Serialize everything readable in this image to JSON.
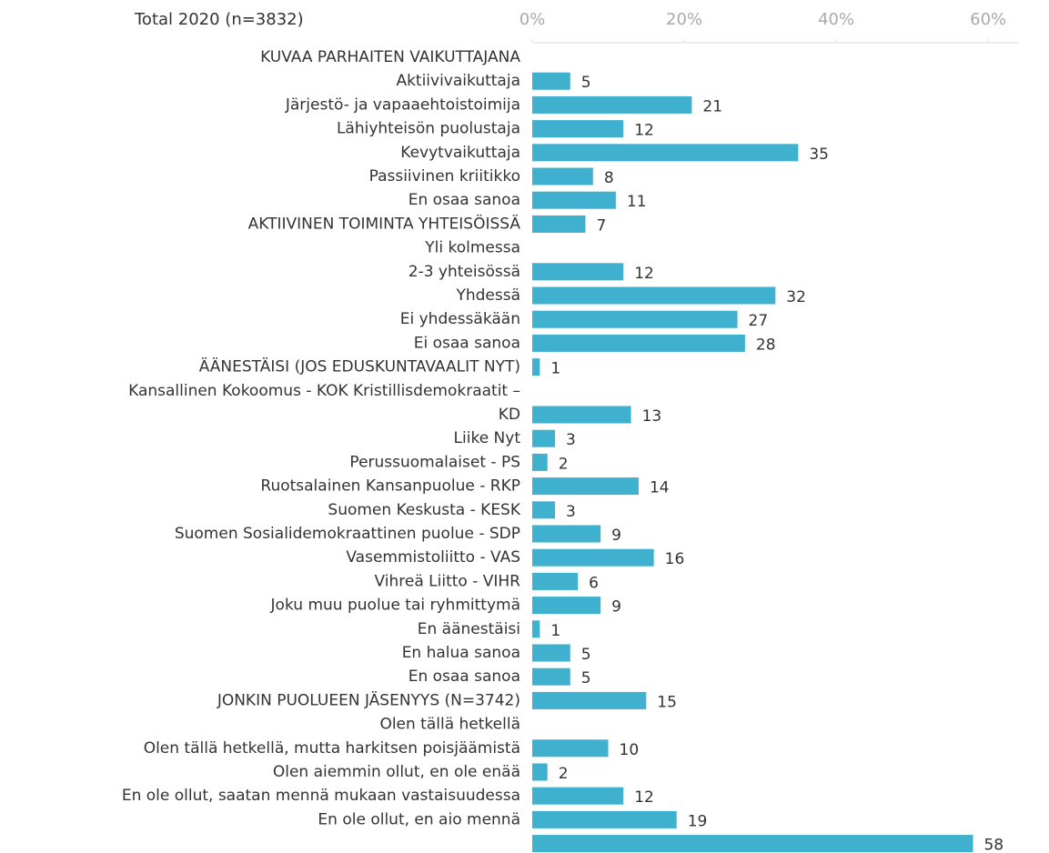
{
  "chart_data": {
    "type": "bar",
    "orientation": "horizontal",
    "title": "Total 2020 (n=3832)",
    "color": "#3fb1ce",
    "categories": [
      "KUVAA PARHAITEN VAIKUTTAJANA",
      "Aktiivivaikuttaja",
      "Järjestö- ja vapaaehtoistoimija",
      "Lähiyhteisön puolustaja",
      "Kevytvaikuttaja",
      "Passiivinen kriitikko",
      "En osaa sanoa",
      "AKTIIVINEN TOIMINTA YHTEISÖISSÄ",
      "Yli kolmessa",
      "2-3 yhteisössä",
      "Yhdessä",
      "Ei yhdessäkään",
      "Ei osaa sanoa",
      "ÄÄNESTÄISI (JOS EDUSKUNTAVAALIT NYT)",
      "Kansallinen Kokoomus - KOK Kristillisdemokraatit –",
      "KD",
      "Liike Nyt",
      "Perussuomalaiset - PS",
      "Ruotsalainen Kansanpuolue - RKP",
      "Suomen Keskusta - KESK",
      "Suomen Sosialidemokraattinen puolue - SDP",
      "Vasemmistoliitto - VAS",
      "Vihreä Liitto - VIHR",
      "Joku muu puolue tai ryhmittymä",
      "En äänestäisi",
      "En halua sanoa",
      "En osaa sanoa",
      "JONKIN PUOLUEEN JÄSENYYS (N=3742)",
      "Olen tällä hetkellä",
      "Olen tällä hetkellä, mutta harkitsen poisjäämistä",
      "Olen aiemmin ollut, en ole enää",
      "En ole ollut, saatan mennä mukaan vastaisuudessa",
      "En ole ollut, en aio mennä",
      null
    ],
    "values": [
      null,
      5,
      21,
      12,
      35,
      8,
      11,
      7,
      null,
      12,
      32,
      27,
      28,
      1,
      null,
      13,
      3,
      2,
      14,
      3,
      9,
      16,
      6,
      9,
      1,
      5,
      5,
      15,
      null,
      10,
      2,
      12,
      19,
      58
    ],
    "xlim": [
      0,
      68
    ],
    "xticks": [
      {
        "value": 0,
        "label": "0%"
      },
      {
        "value": 20,
        "label": "20%"
      },
      {
        "value": 40,
        "label": "40%"
      },
      {
        "value": 60,
        "label": "60%"
      }
    ]
  }
}
